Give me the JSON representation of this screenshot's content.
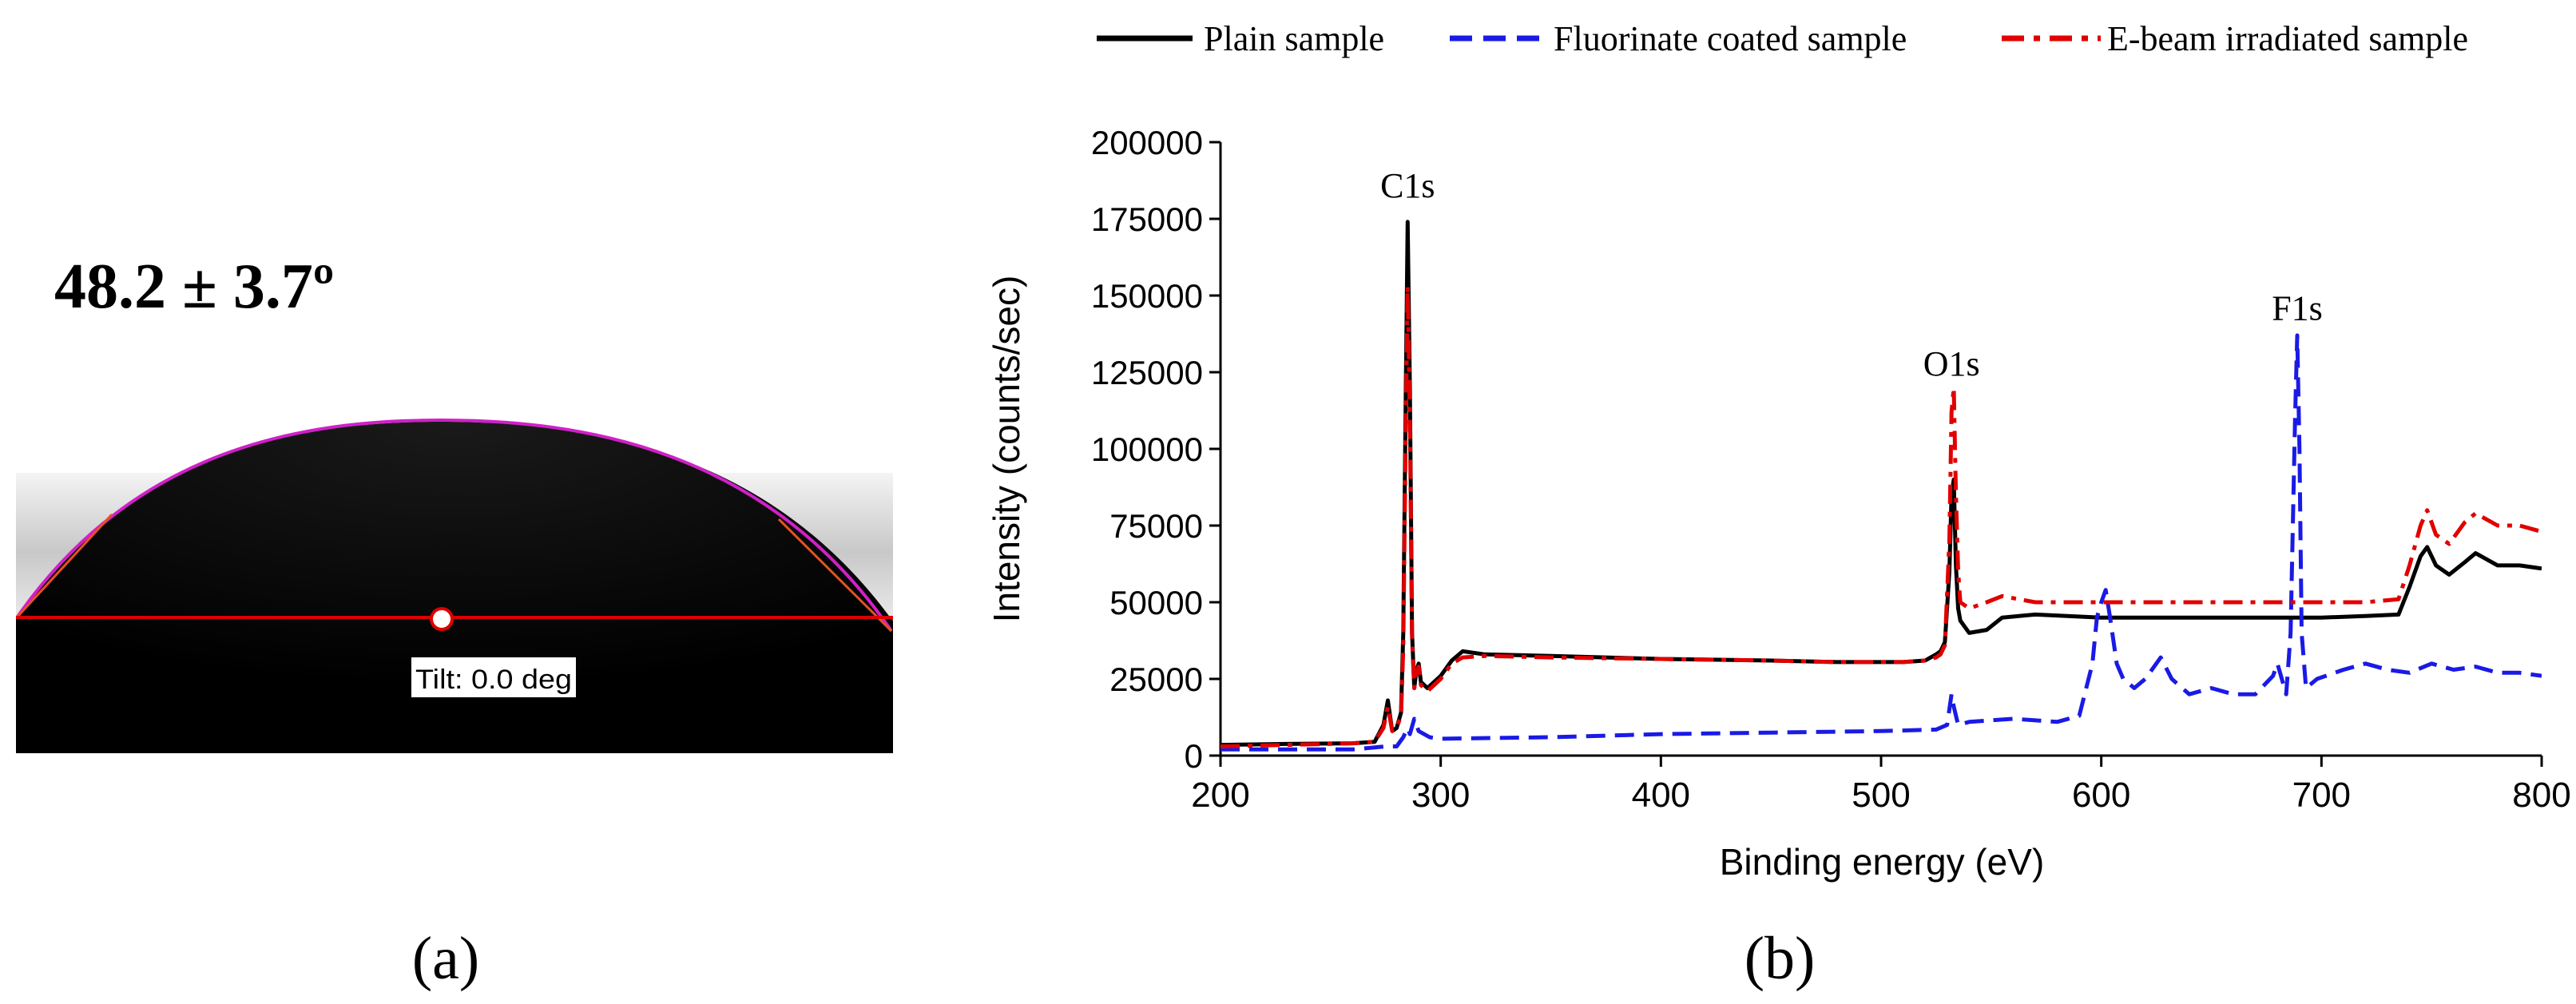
{
  "panel_a": {
    "angle_label": "48.2 ± 3.7º",
    "tilt_label": "Tilt: 0.0 deg",
    "caption": "(a)",
    "colors": {
      "background": "#ffffff",
      "drop": "#050505",
      "fit_line": "#d020c8",
      "baseline": "#dd0000",
      "tangent": "#e85020"
    }
  },
  "panel_b": {
    "caption": "(b)"
  },
  "chart_data": {
    "type": "line",
    "xlabel": "Binding energy (eV)",
    "ylabel": "Intensity (counts/sec)",
    "xlim": [
      200,
      800
    ],
    "ylim": [
      0,
      200000
    ],
    "x_ticks": [
      200,
      300,
      400,
      500,
      600,
      700,
      800
    ],
    "y_ticks": [
      0,
      25000,
      50000,
      75000,
      100000,
      125000,
      150000,
      175000,
      200000
    ],
    "legend_position": "top",
    "grid": false,
    "annotations": [
      {
        "text": "C1s",
        "x": 285,
        "y": 182000
      },
      {
        "text": "O1s",
        "x": 532,
        "y": 124000
      },
      {
        "text": "F1s",
        "x": 689,
        "y": 142000
      }
    ],
    "series": [
      {
        "name": "Plain sample",
        "color": "#000000",
        "dash": "solid",
        "points": [
          [
            200,
            3500
          ],
          [
            230,
            3800
          ],
          [
            260,
            4000
          ],
          [
            270,
            4500
          ],
          [
            274,
            10000
          ],
          [
            276,
            18000
          ],
          [
            278,
            8000
          ],
          [
            280,
            9000
          ],
          [
            282,
            14000
          ],
          [
            283,
            40000
          ],
          [
            284,
            110000
          ],
          [
            285,
            174000
          ],
          [
            286,
            120000
          ],
          [
            287,
            40000
          ],
          [
            288,
            22000
          ],
          [
            289,
            28000
          ],
          [
            290,
            30000
          ],
          [
            291,
            24000
          ],
          [
            294,
            22000
          ],
          [
            300,
            26000
          ],
          [
            305,
            31000
          ],
          [
            310,
            34000
          ],
          [
            320,
            33000
          ],
          [
            350,
            32500
          ],
          [
            400,
            31500
          ],
          [
            450,
            31000
          ],
          [
            480,
            30500
          ],
          [
            510,
            30500
          ],
          [
            520,
            31000
          ],
          [
            525,
            33000
          ],
          [
            527,
            34000
          ],
          [
            529,
            37000
          ],
          [
            531,
            60000
          ],
          [
            532,
            85000
          ],
          [
            533,
            90000
          ],
          [
            534,
            62000
          ],
          [
            535,
            48000
          ],
          [
            536,
            44000
          ],
          [
            540,
            40000
          ],
          [
            548,
            41000
          ],
          [
            555,
            45000
          ],
          [
            570,
            46000
          ],
          [
            600,
            45000
          ],
          [
            650,
            45000
          ],
          [
            700,
            45000
          ],
          [
            720,
            45500
          ],
          [
            735,
            46000
          ],
          [
            740,
            55000
          ],
          [
            745,
            65000
          ],
          [
            748,
            68000
          ],
          [
            752,
            62000
          ],
          [
            758,
            59000
          ],
          [
            765,
            63000
          ],
          [
            770,
            66000
          ],
          [
            780,
            62000
          ],
          [
            790,
            62000
          ],
          [
            800,
            61000
          ]
        ]
      },
      {
        "name": "Fluorinate coated sample",
        "color": "#1a1ae6",
        "dash": "dash",
        "points": [
          [
            200,
            2000
          ],
          [
            230,
            2000
          ],
          [
            260,
            2000
          ],
          [
            275,
            3000
          ],
          [
            280,
            3000
          ],
          [
            283,
            6000
          ],
          [
            285,
            9000
          ],
          [
            286,
            7000
          ],
          [
            288,
            12000
          ],
          [
            290,
            8000
          ],
          [
            295,
            6000
          ],
          [
            300,
            5500
          ],
          [
            350,
            6000
          ],
          [
            400,
            7000
          ],
          [
            450,
            7500
          ],
          [
            500,
            8000
          ],
          [
            525,
            8500
          ],
          [
            530,
            10000
          ],
          [
            532,
            20000
          ],
          [
            533,
            16000
          ],
          [
            535,
            10000
          ],
          [
            540,
            11000
          ],
          [
            560,
            12000
          ],
          [
            580,
            11000
          ],
          [
            590,
            13000
          ],
          [
            596,
            30000
          ],
          [
            598,
            45000
          ],
          [
            600,
            50000
          ],
          [
            602,
            54000
          ],
          [
            604,
            45000
          ],
          [
            607,
            30000
          ],
          [
            610,
            25000
          ],
          [
            615,
            22000
          ],
          [
            620,
            25000
          ],
          [
            627,
            32000
          ],
          [
            632,
            25000
          ],
          [
            640,
            20000
          ],
          [
            650,
            22000
          ],
          [
            660,
            20000
          ],
          [
            670,
            20000
          ],
          [
            678,
            26000
          ],
          [
            680,
            30000
          ],
          [
            684,
            20000
          ],
          [
            686,
            40000
          ],
          [
            688,
            110000
          ],
          [
            689,
            137000
          ],
          [
            690,
            100000
          ],
          [
            691,
            40000
          ],
          [
            693,
            22000
          ],
          [
            698,
            25000
          ],
          [
            710,
            28000
          ],
          [
            720,
            30000
          ],
          [
            730,
            28000
          ],
          [
            740,
            27000
          ],
          [
            750,
            30000
          ],
          [
            760,
            28000
          ],
          [
            770,
            29000
          ],
          [
            780,
            27000
          ],
          [
            790,
            27000
          ],
          [
            800,
            26000
          ]
        ]
      },
      {
        "name": "E-beam irradiated sample",
        "color": "#e00000",
        "dash": "dashdot",
        "points": [
          [
            200,
            3000
          ],
          [
            230,
            3500
          ],
          [
            260,
            4000
          ],
          [
            270,
            4500
          ],
          [
            274,
            9000
          ],
          [
            276,
            16000
          ],
          [
            278,
            8000
          ],
          [
            280,
            9000
          ],
          [
            282,
            13000
          ],
          [
            283,
            35000
          ],
          [
            284,
            100000
          ],
          [
            285,
            153000
          ],
          [
            286,
            110000
          ],
          [
            287,
            38000
          ],
          [
            288,
            22000
          ],
          [
            289,
            27000
          ],
          [
            290,
            29000
          ],
          [
            291,
            23000
          ],
          [
            294,
            21000
          ],
          [
            300,
            25000
          ],
          [
            305,
            30000
          ],
          [
            310,
            32000
          ],
          [
            320,
            32500
          ],
          [
            350,
            32000
          ],
          [
            400,
            31500
          ],
          [
            450,
            31000
          ],
          [
            480,
            30500
          ],
          [
            510,
            30500
          ],
          [
            520,
            31000
          ],
          [
            525,
            32000
          ],
          [
            527,
            33000
          ],
          [
            529,
            36000
          ],
          [
            531,
            70000
          ],
          [
            532,
            112000
          ],
          [
            533,
            120000
          ],
          [
            534,
            85000
          ],
          [
            535,
            60000
          ],
          [
            536,
            50000
          ],
          [
            540,
            48000
          ],
          [
            548,
            50000
          ],
          [
            555,
            52000
          ],
          [
            570,
            50000
          ],
          [
            600,
            50000
          ],
          [
            650,
            50000
          ],
          [
            700,
            50000
          ],
          [
            720,
            50000
          ],
          [
            735,
            51000
          ],
          [
            740,
            62000
          ],
          [
            745,
            75000
          ],
          [
            748,
            80000
          ],
          [
            752,
            72000
          ],
          [
            758,
            69000
          ],
          [
            765,
            76000
          ],
          [
            770,
            79000
          ],
          [
            780,
            75000
          ],
          [
            790,
            75000
          ],
          [
            800,
            73000
          ]
        ]
      }
    ]
  }
}
